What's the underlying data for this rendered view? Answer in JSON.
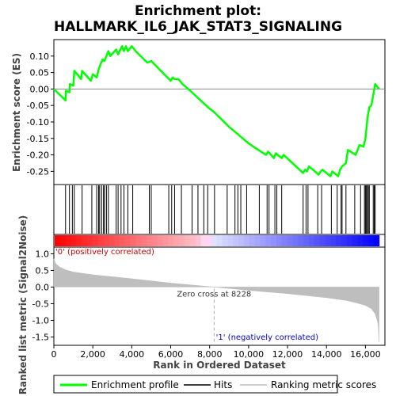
{
  "chart_data": {
    "type": "line",
    "title_line1": "Enrichment plot:",
    "title_line2": "HALLMARK_IL6_JAK_STAT3_SIGNALING",
    "es_ylabel": "Enrichment score (ES)",
    "metric_ylabel_line1": "Ranked list metric (Signal2Noise)",
    "xlabel": "Rank in Ordered Dataset",
    "xlim": [
      0,
      17000
    ],
    "x_ticks": [
      0,
      2000,
      4000,
      6000,
      8000,
      10000,
      12000,
      14000,
      16000
    ],
    "x_tick_labels": [
      "0",
      "2,000",
      "4,000",
      "6,000",
      "8,000",
      "10,000",
      "12,000",
      "14,000",
      "16,000"
    ],
    "es_ylim": [
      -0.29,
      0.15
    ],
    "es_ticks": [
      0.1,
      0.05,
      0.0,
      -0.05,
      -0.1,
      -0.15,
      -0.2,
      -0.25
    ],
    "es_tick_labels": [
      "0.10",
      "0.05",
      "0.00",
      "-0.05",
      "-0.10",
      "-0.15",
      "-0.20",
      "-0.25"
    ],
    "metric_ylim": [
      -1.75,
      1.2
    ],
    "metric_ticks": [
      1.0,
      0.5,
      0.0,
      -0.5,
      -1.0,
      -1.5
    ],
    "metric_tick_labels": [
      "1.0",
      "0.5",
      "0.0",
      "-0.5",
      "-1.0",
      "-1.5"
    ],
    "n_genes": 16700,
    "zero_cross": 8228,
    "zero_cross_label": "Zero cross at 8228",
    "pos_label": "'0' (positively correlated)",
    "neg_label": "'1' (negatively correlated)",
    "series": [
      {
        "name": "Enrichment profile",
        "color": "#00ff00",
        "x": [
          0,
          600,
          620,
          800,
          820,
          1000,
          1050,
          1200,
          1400,
          1450,
          1900,
          2000,
          2200,
          2300,
          2400,
          2500,
          2600,
          2700,
          2800,
          2900,
          3200,
          3300,
          3500,
          3600,
          3700,
          3800,
          4000,
          4200,
          4800,
          5000,
          6000,
          6100,
          6200,
          6400,
          6600,
          7000,
          8000,
          8228,
          9000,
          9500,
          10000,
          10500,
          10900,
          11000,
          11300,
          11400,
          11700,
          11800,
          12800,
          12900,
          13000,
          13100,
          13600,
          13700,
          13800,
          14200,
          14300,
          14600,
          14700,
          14800,
          15000,
          15100,
          15500,
          15700,
          15900,
          16000,
          16100,
          16200,
          16300,
          16400,
          16500,
          16700
        ],
        "y": [
          0.0,
          -0.035,
          -0.005,
          -0.01,
          0.015,
          0.01,
          0.055,
          0.045,
          0.03,
          0.055,
          0.025,
          0.045,
          0.035,
          0.06,
          0.075,
          0.09,
          0.085,
          0.1,
          0.115,
          0.1,
          0.12,
          0.105,
          0.13,
          0.115,
          0.13,
          0.115,
          0.13,
          0.115,
          0.08,
          0.085,
          0.025,
          0.035,
          0.03,
          0.03,
          0.015,
          -0.005,
          -0.06,
          -0.07,
          -0.115,
          -0.14,
          -0.165,
          -0.185,
          -0.2,
          -0.19,
          -0.21,
          -0.195,
          -0.21,
          -0.2,
          -0.255,
          -0.245,
          -0.25,
          -0.235,
          -0.26,
          -0.25,
          -0.245,
          -0.265,
          -0.25,
          -0.265,
          -0.245,
          -0.235,
          -0.225,
          -0.185,
          -0.2,
          -0.17,
          -0.175,
          -0.15,
          -0.09,
          -0.055,
          -0.05,
          -0.02,
          0.015,
          0.0
        ]
      },
      {
        "name": "Hits",
        "color": "#000000",
        "positions": [
          600,
          800,
          950,
          1050,
          1450,
          1950,
          2200,
          2300,
          2350,
          2450,
          2550,
          2600,
          2700,
          2800,
          3200,
          3300,
          3450,
          3600,
          3800,
          4050,
          4900,
          5000,
          5900,
          6050,
          6200,
          6550,
          7100,
          7400,
          7700,
          7900,
          8250,
          8900,
          9300,
          9450,
          9600,
          9900,
          10550,
          10950,
          11050,
          11350,
          11450,
          11700,
          12800,
          12950,
          13050,
          13550,
          13750,
          14250,
          14550,
          14750,
          14800,
          15000,
          15450,
          15750,
          15950,
          16000,
          16050,
          16100,
          16150,
          16200,
          16400,
          16450,
          16500
        ]
      },
      {
        "name": "Ranking metric scores",
        "color": "#bebebe",
        "x": [
          0,
          100,
          300,
          600,
          1000,
          2000,
          4000,
          6000,
          8228,
          10000,
          12000,
          14000,
          15000,
          15500,
          16000,
          16300,
          16500,
          16650,
          16700
        ],
        "y": [
          0.85,
          0.7,
          0.6,
          0.52,
          0.45,
          0.37,
          0.25,
          0.12,
          0.0,
          -0.1,
          -0.2,
          -0.32,
          -0.4,
          -0.47,
          -0.55,
          -0.65,
          -0.8,
          -1.1,
          -1.65
        ]
      }
    ],
    "legend": [
      {
        "label": "Enrichment profile",
        "color": "#00ff00"
      },
      {
        "label": "Hits",
        "color": "#000000"
      },
      {
        "label": "Ranking metric scores",
        "color": "#bebebe"
      }
    ],
    "legend_position": "bottom",
    "grid": false
  }
}
